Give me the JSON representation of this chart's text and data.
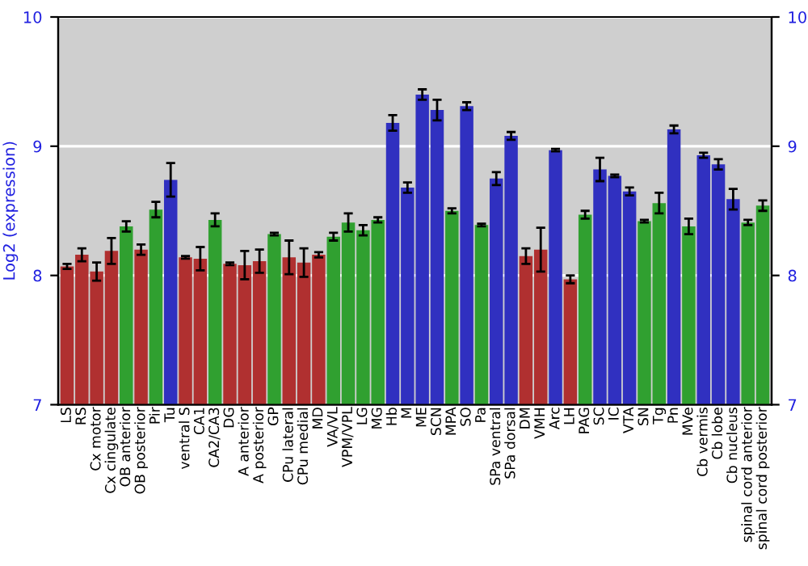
{
  "chart_data": {
    "type": "bar",
    "ylabel": "Log2 (expression)",
    "categories": [
      "LS",
      "RS",
      "Cx motor",
      "Cx cingulate",
      "OB anterior",
      "OB posterior",
      "Pir",
      "Tu",
      "ventral S",
      "CA1",
      "CA2/CA3",
      "DG",
      "A anterior",
      "A posterior",
      "GP",
      "CPu lateral",
      "CPu medial",
      "MD",
      "VA/VL",
      "VPM/VPL",
      "LG",
      "MG",
      "Hb",
      "M",
      "ME",
      "SCN",
      "MPA",
      "SO",
      "Pa",
      "SPa ventral",
      "SPa dorsal",
      "DM",
      "VMH",
      "Arc",
      "LH",
      "PAG",
      "SC",
      "IC",
      "VTA",
      "SN",
      "Tg",
      "Pn",
      "MVe",
      "Cb vermis",
      "Cb lobe",
      "Cb nucleus",
      "spinal cord anterior",
      "spinal cord posterior"
    ],
    "values": [
      8.07,
      8.16,
      8.03,
      8.19,
      8.38,
      8.2,
      8.51,
      8.74,
      8.14,
      8.13,
      8.43,
      8.09,
      8.08,
      8.11,
      8.32,
      8.14,
      8.1,
      8.16,
      8.3,
      8.41,
      8.35,
      8.43,
      9.18,
      8.68,
      9.4,
      9.28,
      8.5,
      9.31,
      8.39,
      8.75,
      9.08,
      8.15,
      8.2,
      8.97,
      7.97,
      8.47,
      8.82,
      8.77,
      8.65,
      8.42,
      8.56,
      9.13,
      8.38,
      8.93,
      8.86,
      8.59,
      8.41,
      8.54
    ],
    "errors": [
      0.02,
      0.05,
      0.07,
      0.1,
      0.04,
      0.04,
      0.06,
      0.13,
      0.01,
      0.09,
      0.05,
      0.01,
      0.11,
      0.09,
      0.01,
      0.13,
      0.11,
      0.02,
      0.03,
      0.07,
      0.04,
      0.02,
      0.06,
      0.04,
      0.04,
      0.08,
      0.02,
      0.03,
      0.01,
      0.05,
      0.03,
      0.06,
      0.17,
      0.01,
      0.03,
      0.03,
      0.09,
      0.01,
      0.03,
      0.01,
      0.08,
      0.03,
      0.06,
      0.02,
      0.04,
      0.08,
      0.02,
      0.04
    ],
    "colors": [
      "#b03030",
      "#b03030",
      "#b03030",
      "#b03030",
      "#30a030",
      "#b03030",
      "#30a030",
      "#3030c0",
      "#b03030",
      "#b03030",
      "#30a030",
      "#b03030",
      "#b03030",
      "#b03030",
      "#30a030",
      "#b03030",
      "#b03030",
      "#b03030",
      "#30a030",
      "#30a030",
      "#30a030",
      "#30a030",
      "#3030c0",
      "#3030c0",
      "#3030c0",
      "#3030c0",
      "#30a030",
      "#3030c0",
      "#30a030",
      "#3030c0",
      "#3030c0",
      "#b03030",
      "#b03030",
      "#3030c0",
      "#b03030",
      "#30a030",
      "#3030c0",
      "#3030c0",
      "#3030c0",
      "#30a030",
      "#30a030",
      "#3030c0",
      "#30a030",
      "#3030c0",
      "#3030c0",
      "#3030c0",
      "#30a030",
      "#30a030"
    ],
    "ylim": [
      7,
      10
    ],
    "yticks": [
      7,
      8,
      9,
      10
    ],
    "y2lim": [
      7,
      10
    ],
    "y2ticks": [
      7,
      8,
      9,
      10
    ],
    "grid": "y"
  }
}
